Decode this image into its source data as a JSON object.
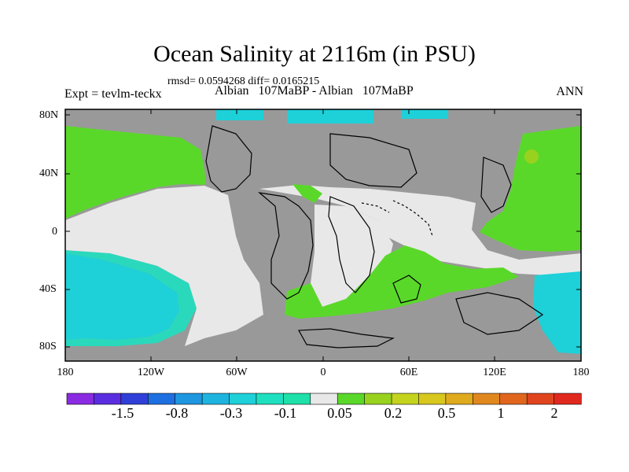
{
  "title": "Ocean Salinity at 2116m (in PSU)",
  "stats_line": "rmsd= 0.0594268  diff= 0.0165215",
  "left_label": "Expt = tevlm-teckx",
  "center_label": "Albian   107MaBP - Albian   107MaBP",
  "right_label": "ANN",
  "lat_ticks": [
    "80N",
    "40N",
    "0",
    "40S",
    "80S"
  ],
  "lon_ticks": [
    "180",
    "120W",
    "60W",
    "0",
    "60E",
    "120E",
    "180"
  ],
  "colorbar": {
    "colors": [
      "#8a2be2",
      "#5a2ee0",
      "#2f3fd8",
      "#1e6fe0",
      "#1e96e0",
      "#1eb4e0",
      "#1ed0d8",
      "#1ee0c0",
      "#1ee0a8",
      "#e8e8e8",
      "#5ad82a",
      "#98d21e",
      "#c4d41e",
      "#d8c81e",
      "#e0aa1e",
      "#e0881e",
      "#e0661e",
      "#e0441e",
      "#e0281e"
    ],
    "labels": [
      "-1.5",
      "-0.8",
      "-0.3",
      "-0.1",
      "0.05",
      "0.2",
      "0.5",
      "1",
      "2"
    ]
  },
  "map_colors": {
    "land": "#999999",
    "near_zero": "#e8e8e8",
    "green": "#5ad82a",
    "cyan": "#1ed0d8",
    "teal": "#1ee0c0",
    "yellow_green": "#98d21e"
  }
}
